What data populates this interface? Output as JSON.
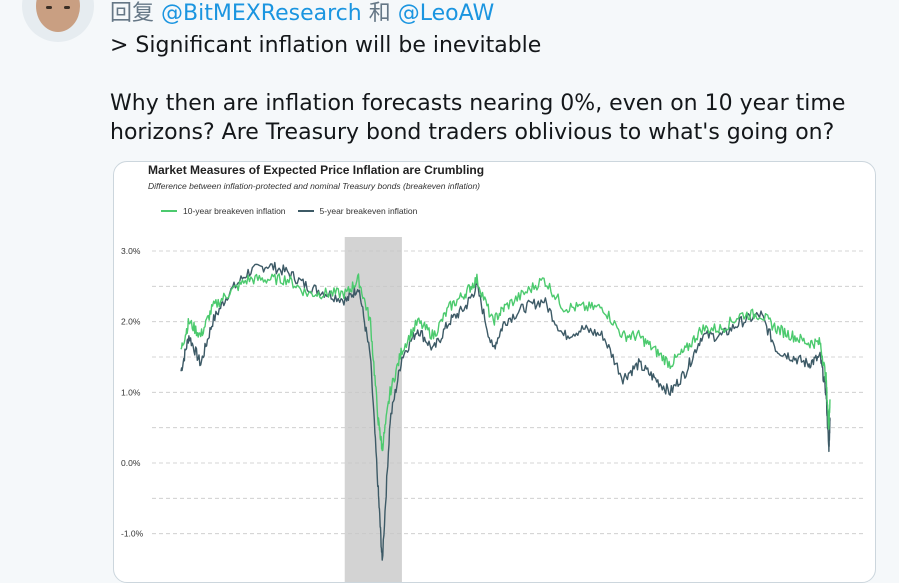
{
  "reply": {
    "prefix": "回复",
    "handle1": "@BitMEXResearch",
    "conj": "和",
    "handle2": "@LeoAW"
  },
  "tweet": {
    "line1": "> Significant inflation will be inevitable",
    "line2": "Why then are inflation forecasts nearing 0%, even on 10 year time horizons? Are Treasury bond traders oblivious to what's going on?"
  },
  "chart_data": {
    "type": "line",
    "title": "Market Measures of Expected Price Inflation are Crumbling",
    "subtitle": "Difference between inflation-protected and nominal Treasury bonds (breakeven inflation)",
    "yticks": [
      "3.0%",
      "2.0%",
      "1.0%",
      "0.0%",
      "-1.0%"
    ],
    "ylim": [
      -1.4,
      3.2
    ],
    "grid": true,
    "legend_position": "top-left",
    "x": [
      2003.8,
      2004.0,
      2004.3,
      2004.6,
      2005.0,
      2005.5,
      2006.0,
      2006.5,
      2007.0,
      2007.5,
      2008.0,
      2008.3,
      2008.6,
      2008.8,
      2008.9,
      2009.1,
      2009.4,
      2009.8,
      2010.2,
      2010.6,
      2011.0,
      2011.3,
      2011.7,
      2012.0,
      2012.5,
      2013.0,
      2013.5,
      2014.0,
      2014.5,
      2015.0,
      2015.4,
      2015.8,
      2016.2,
      2016.6,
      2017.0,
      2017.5,
      2018.0,
      2018.5,
      2018.9,
      2019.3,
      2019.7,
      2020.0,
      2020.15,
      2020.22,
      2020.25
    ],
    "series": [
      {
        "name": "10-year breakeven inflation",
        "color": "#4cca6e",
        "values": [
          1.6,
          2.0,
          1.8,
          2.2,
          2.4,
          2.6,
          2.6,
          2.6,
          2.4,
          2.4,
          2.4,
          2.6,
          2.0,
          0.6,
          0.2,
          1.0,
          1.6,
          2.0,
          1.8,
          2.2,
          2.4,
          2.6,
          2.0,
          2.2,
          2.4,
          2.6,
          2.2,
          2.2,
          2.2,
          1.8,
          1.8,
          1.6,
          1.4,
          1.6,
          1.9,
          1.9,
          2.1,
          2.1,
          1.9,
          1.8,
          1.7,
          1.7,
          1.2,
          0.5,
          0.9
        ]
      },
      {
        "name": "5-year breakeven inflation",
        "color": "#3d5a66",
        "values": [
          1.3,
          1.8,
          1.4,
          2.0,
          2.4,
          2.7,
          2.8,
          2.7,
          2.5,
          2.4,
          2.3,
          2.5,
          1.5,
          -0.4,
          -1.4,
          0.6,
          1.5,
          1.9,
          1.6,
          2.0,
          2.2,
          2.5,
          1.6,
          2.0,
          2.2,
          2.3,
          1.8,
          1.9,
          1.8,
          1.2,
          1.4,
          1.2,
          1.0,
          1.3,
          1.8,
          1.8,
          2.0,
          2.1,
          1.6,
          1.5,
          1.4,
          1.5,
          1.0,
          0.2,
          0.6
        ]
      }
    ],
    "shaded_period": [
      2007.95,
      2009.4
    ]
  }
}
